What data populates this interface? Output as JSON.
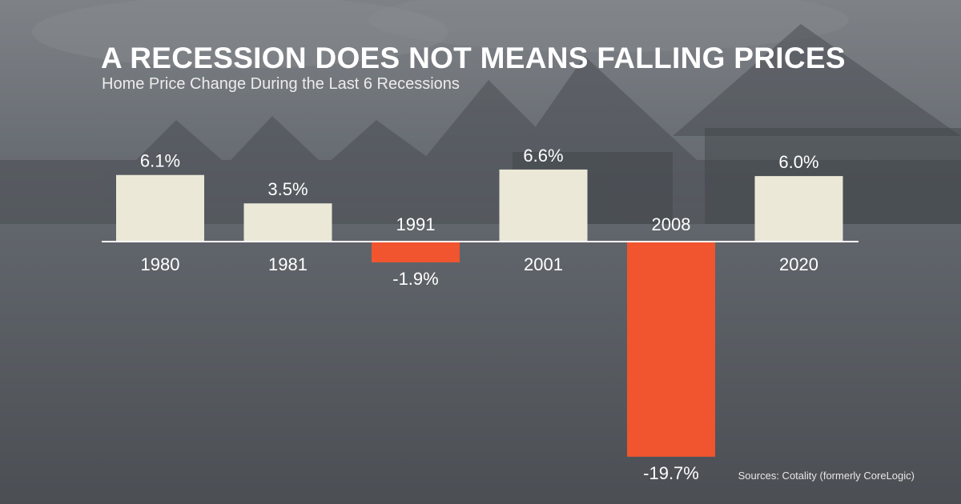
{
  "colors": {
    "positive": "#ebe8d8",
    "negative": "#f0552f",
    "axis": "#ffffff",
    "text": "#ffffff"
  },
  "chart_data": {
    "type": "bar",
    "title": "A RECESSION DOES NOT MEANS FALLING PRICES",
    "subtitle": "Home Price Change During the Last 6 Recessions",
    "categories": [
      "1980",
      "1981",
      "1991",
      "2001",
      "2008",
      "2020"
    ],
    "values": [
      6.1,
      3.5,
      -1.9,
      6.6,
      -19.7,
      6.0
    ],
    "value_labels": [
      "6.1%",
      "3.5%",
      "-1.9%",
      "6.6%",
      "-19.7%",
      "6.0%"
    ],
    "xlabel": "",
    "ylabel": "",
    "ylim": [
      -20.5,
      7.5
    ],
    "grid": false,
    "legend": "none",
    "source": "Sources: Cotality (formerly CoreLogic)"
  }
}
